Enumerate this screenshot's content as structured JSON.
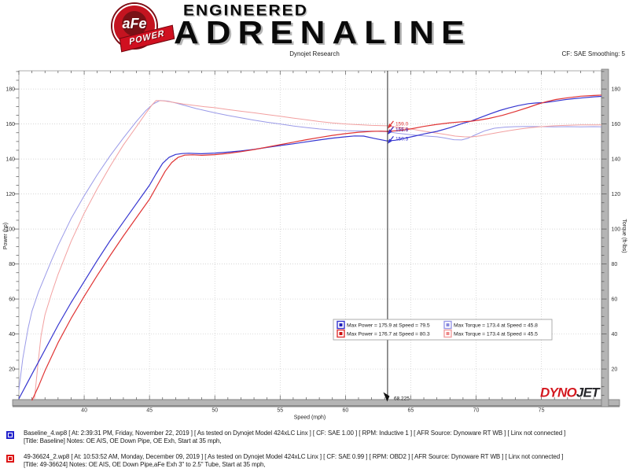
{
  "header": {
    "afe": "aFe",
    "power": "POWER",
    "engineered": "ENGINEERED",
    "adrenaline": "ADRENALINE",
    "subtitle": "Dynojet Research",
    "smoothing": "CF: SAE Smoothing: 5"
  },
  "chart_data": {
    "type": "line",
    "xlabel": "Speed (mph)",
    "ylabel_left": "Power (hp)",
    "ylabel_right": "Torque (ft-lbs)",
    "xlim": [
      35,
      79.6
    ],
    "vlim": [
      2.5,
      190.4
    ],
    "x_ticks": [
      40,
      45,
      50,
      55,
      60,
      65,
      70,
      75
    ],
    "y_ticks": [
      20,
      40,
      60,
      80,
      100,
      120,
      140,
      160,
      180
    ],
    "x_minor_step": 1,
    "y_minor_step": 5,
    "grid": "dotted",
    "cursor": {
      "x": 63.225,
      "label": "63.225"
    },
    "cursor_callouts": [
      {
        "label": "159.0",
        "value": 159.0,
        "color": "#e03434"
      },
      {
        "label": "155.8",
        "value": 155.8,
        "color": "#e03434"
      },
      {
        "label": "155.6",
        "value": 155.6,
        "color": "#3535d0"
      },
      {
        "label": "150.3",
        "value": 150.3,
        "color": "#3535d0"
      }
    ],
    "watermark": {
      "part1": "DYNO",
      "part2": "JET",
      "color1": "#d41920",
      "color2": "#26262a"
    },
    "legend_box": {
      "rows": [
        {
          "power_label": "Max Power = 175.9 at Speed = 79.5",
          "power_swatch": "#3535d0",
          "power_fill": "#2222bb",
          "torque_label": "Max Torque = 173.4 at Speed = 45.8",
          "torque_swatch": "#9a9ae8",
          "torque_fill": "#8888dd"
        },
        {
          "power_label": "Max Power = 176.7 at Speed = 80.3",
          "power_swatch": "#e03434",
          "power_fill": "#cc1111",
          "torque_label": "Max Torque = 173.4 at Speed = 45.5",
          "torque_swatch": "#f2a0a0",
          "torque_fill": "#ee8888"
        }
      ]
    },
    "series": [
      {
        "id": "baseline-torque",
        "name": "Baseline_4 Torque",
        "color": "#9a9ae8",
        "width": 1,
        "points": [
          [
            35,
            8
          ],
          [
            35.3,
            26
          ],
          [
            35.7,
            43
          ],
          [
            36,
            53
          ],
          [
            36.5,
            64
          ],
          [
            37,
            73
          ],
          [
            37.5,
            82
          ],
          [
            38,
            90.5
          ],
          [
            39,
            106
          ],
          [
            40,
            119
          ],
          [
            41,
            131
          ],
          [
            42,
            142
          ],
          [
            43,
            152
          ],
          [
            44,
            161.5
          ],
          [
            44.7,
            167.5
          ],
          [
            45.3,
            171.5
          ],
          [
            45.8,
            173.4
          ],
          [
            46.4,
            173.1
          ],
          [
            47,
            172
          ],
          [
            47.8,
            170.4
          ],
          [
            48.6,
            168.8
          ],
          [
            49.3,
            167.6
          ],
          [
            50,
            166.4
          ],
          [
            51,
            164.9
          ],
          [
            52,
            163.5
          ],
          [
            53,
            162.2
          ],
          [
            54,
            161
          ],
          [
            55,
            160
          ],
          [
            56,
            158.9
          ],
          [
            57,
            158
          ],
          [
            58,
            157.2
          ],
          [
            59,
            156.6
          ],
          [
            60,
            156.2
          ],
          [
            61,
            156
          ],
          [
            62,
            155.9
          ],
          [
            63.2,
            155.6
          ],
          [
            64,
            154.7
          ],
          [
            65,
            153.9
          ],
          [
            66,
            153.2
          ],
          [
            67,
            152.7
          ],
          [
            67.6,
            152
          ],
          [
            68.3,
            151
          ],
          [
            68.9,
            150.9
          ],
          [
            69.4,
            151.9
          ],
          [
            70,
            154
          ],
          [
            70.7,
            156.2
          ],
          [
            71.4,
            157.6
          ],
          [
            72.2,
            158.2
          ],
          [
            73,
            158.5
          ],
          [
            74,
            158.6
          ],
          [
            75,
            158.5
          ],
          [
            76,
            158.4
          ],
          [
            77,
            158.5
          ],
          [
            78,
            158.4
          ],
          [
            79,
            158.5
          ],
          [
            79.6,
            158.4
          ]
        ]
      },
      {
        "id": "new-torque",
        "name": "49-36624_2 Torque",
        "color": "#f2a0a0",
        "width": 1,
        "points": [
          [
            36.2,
            3
          ],
          [
            36.45,
            22
          ],
          [
            36.7,
            39
          ],
          [
            37,
            51
          ],
          [
            37.5,
            63
          ],
          [
            38,
            74
          ],
          [
            39,
            93
          ],
          [
            40,
            109
          ],
          [
            41,
            123
          ],
          [
            42,
            136
          ],
          [
            43,
            148
          ],
          [
            44,
            158.5
          ],
          [
            44.7,
            166
          ],
          [
            45.2,
            171
          ],
          [
            45.5,
            173.4
          ],
          [
            46.1,
            173.2
          ],
          [
            46.8,
            172.4
          ],
          [
            47.6,
            171.4
          ],
          [
            48.4,
            170.6
          ],
          [
            49.2,
            169.9
          ],
          [
            50,
            169.3
          ],
          [
            51,
            168.3
          ],
          [
            52,
            167.3
          ],
          [
            53,
            166.4
          ],
          [
            54,
            165.4
          ],
          [
            55,
            164.4
          ],
          [
            56,
            163.4
          ],
          [
            57,
            162.4
          ],
          [
            58,
            161.4
          ],
          [
            59,
            160.6
          ],
          [
            60,
            160
          ],
          [
            61,
            159.6
          ],
          [
            62,
            159.2
          ],
          [
            63.2,
            159
          ],
          [
            64,
            158.2
          ],
          [
            65,
            157.2
          ],
          [
            66,
            155.9
          ],
          [
            67,
            154.8
          ],
          [
            67.7,
            154
          ],
          [
            68.4,
            153.1
          ],
          [
            69.1,
            152.7
          ],
          [
            69.6,
            152.6
          ],
          [
            70.3,
            153.2
          ],
          [
            71,
            154.2
          ],
          [
            71.8,
            155.3
          ],
          [
            72.6,
            156.3
          ],
          [
            73.4,
            157.2
          ],
          [
            74.2,
            157.9
          ],
          [
            75,
            158.5
          ],
          [
            76,
            159
          ],
          [
            77,
            159.3
          ],
          [
            78,
            159.5
          ],
          [
            79,
            159.5
          ],
          [
            79.6,
            159.5
          ]
        ]
      },
      {
        "id": "baseline-power",
        "name": "Baseline_4 Power",
        "color": "#3535d0",
        "width": 1.2,
        "points": [
          [
            35,
            3
          ],
          [
            35.5,
            10
          ],
          [
            36,
            17
          ],
          [
            36.5,
            24
          ],
          [
            37,
            31
          ],
          [
            38,
            45
          ],
          [
            39,
            58
          ],
          [
            40,
            70
          ],
          [
            41,
            82
          ],
          [
            42,
            93.5
          ],
          [
            43,
            104
          ],
          [
            44,
            114.5
          ],
          [
            45,
            125
          ],
          [
            45.5,
            131.5
          ],
          [
            46,
            137.5
          ],
          [
            46.5,
            141
          ],
          [
            47,
            142.6
          ],
          [
            47.5,
            143.1
          ],
          [
            48,
            143.3
          ],
          [
            49,
            143
          ],
          [
            50,
            143.4
          ],
          [
            51,
            143.9
          ],
          [
            52,
            144.6
          ],
          [
            53,
            145.5
          ],
          [
            54,
            146.6
          ],
          [
            55,
            147.7
          ],
          [
            56,
            148.7
          ],
          [
            57,
            149.8
          ],
          [
            58,
            150.9
          ],
          [
            59,
            151.9
          ],
          [
            60,
            152.7
          ],
          [
            60.7,
            153.2
          ],
          [
            61.4,
            153.1
          ],
          [
            62.2,
            151.8
          ],
          [
            63.2,
            150.3
          ],
          [
            63.8,
            150.7
          ],
          [
            64.5,
            151.8
          ],
          [
            65.3,
            153.1
          ],
          [
            66,
            154.3
          ],
          [
            67,
            155.8
          ],
          [
            68,
            157.9
          ],
          [
            69,
            160.4
          ],
          [
            69.6,
            161.6
          ],
          [
            70.3,
            163.6
          ],
          [
            71,
            165.6
          ],
          [
            71.8,
            167.7
          ],
          [
            72.5,
            169.2
          ],
          [
            73.2,
            170.5
          ],
          [
            74,
            171.6
          ],
          [
            74.6,
            172
          ],
          [
            75.2,
            172.2
          ],
          [
            76,
            173
          ],
          [
            76.8,
            173.9
          ],
          [
            77.5,
            174.5
          ],
          [
            78.2,
            175
          ],
          [
            79,
            175.5
          ],
          [
            79.6,
            175.8
          ]
        ]
      },
      {
        "id": "new-power",
        "name": "49-36624_2 Power",
        "color": "#e03434",
        "width": 1.2,
        "points": [
          [
            36,
            2
          ],
          [
            36.5,
            10
          ],
          [
            37,
            19
          ],
          [
            38,
            35
          ],
          [
            39,
            49
          ],
          [
            40,
            61.5
          ],
          [
            41,
            73.5
          ],
          [
            42,
            85
          ],
          [
            43,
            96
          ],
          [
            44,
            106.5
          ],
          [
            45,
            117
          ],
          [
            45.6,
            125
          ],
          [
            46.2,
            133
          ],
          [
            46.7,
            138
          ],
          [
            47.2,
            141
          ],
          [
            47.7,
            142.2
          ],
          [
            48.3,
            142.4
          ],
          [
            49,
            142.1
          ],
          [
            50,
            142.5
          ],
          [
            51,
            143.2
          ],
          [
            52,
            144.2
          ],
          [
            53,
            145.4
          ],
          [
            54,
            146.8
          ],
          [
            55,
            148.2
          ],
          [
            56,
            149.6
          ],
          [
            57,
            151
          ],
          [
            58,
            152.3
          ],
          [
            59,
            153.5
          ],
          [
            60,
            154.5
          ],
          [
            61,
            155.3
          ],
          [
            62,
            155.8
          ],
          [
            62.7,
            155.9
          ],
          [
            63.2,
            155.8
          ],
          [
            64,
            156.2
          ],
          [
            65,
            157.2
          ],
          [
            66,
            158.6
          ],
          [
            67,
            159.8
          ],
          [
            68,
            160.7
          ],
          [
            69,
            161.3
          ],
          [
            69.6,
            161.6
          ],
          [
            70.3,
            162.3
          ],
          [
            71,
            163.2
          ],
          [
            72,
            164.9
          ],
          [
            73,
            167.1
          ],
          [
            74,
            169.5
          ],
          [
            74.7,
            171.3
          ],
          [
            75.4,
            172.8
          ],
          [
            76.1,
            174
          ],
          [
            77,
            175
          ],
          [
            78,
            175.9
          ],
          [
            79,
            176.3
          ],
          [
            79.6,
            176.5
          ]
        ]
      }
    ]
  },
  "file_legend": [
    {
      "color": "#2323cc",
      "line1": "Baseline_4.wp8 [ At: 2:39:31 PM, Friday, November 22, 2019 ] [ As tested on Dynojet Model 424xLC Linx ] [ CF: SAE 1.00 ] [ RPM: Inductive 1 ] [ AFR Source: Dynoware RT WB ] [ Linx not connected ]",
      "line2": "[Title: Baseline]  Notes: OE AIS, OE Down Pipe, OE Exh, Start at 35 mph,"
    },
    {
      "color": "#dd1515",
      "line1": "49-36624_2.wp8 [ At: 10:53:52 AM, Monday, December 09, 2019 ] [ As tested on Dynojet Model 424xLC Linx ] [ CF: SAE 0.99 ] [ RPM: OBD2 ] [ AFR Source: Dynoware RT WB ] [ Linx not connected ]",
      "line2": "[Title: 49-36624]  Notes: OE AIS, OE Down Pipe,aFe Exh 3\" to 2.5\" Tube, Start at 35 mph,"
    }
  ]
}
